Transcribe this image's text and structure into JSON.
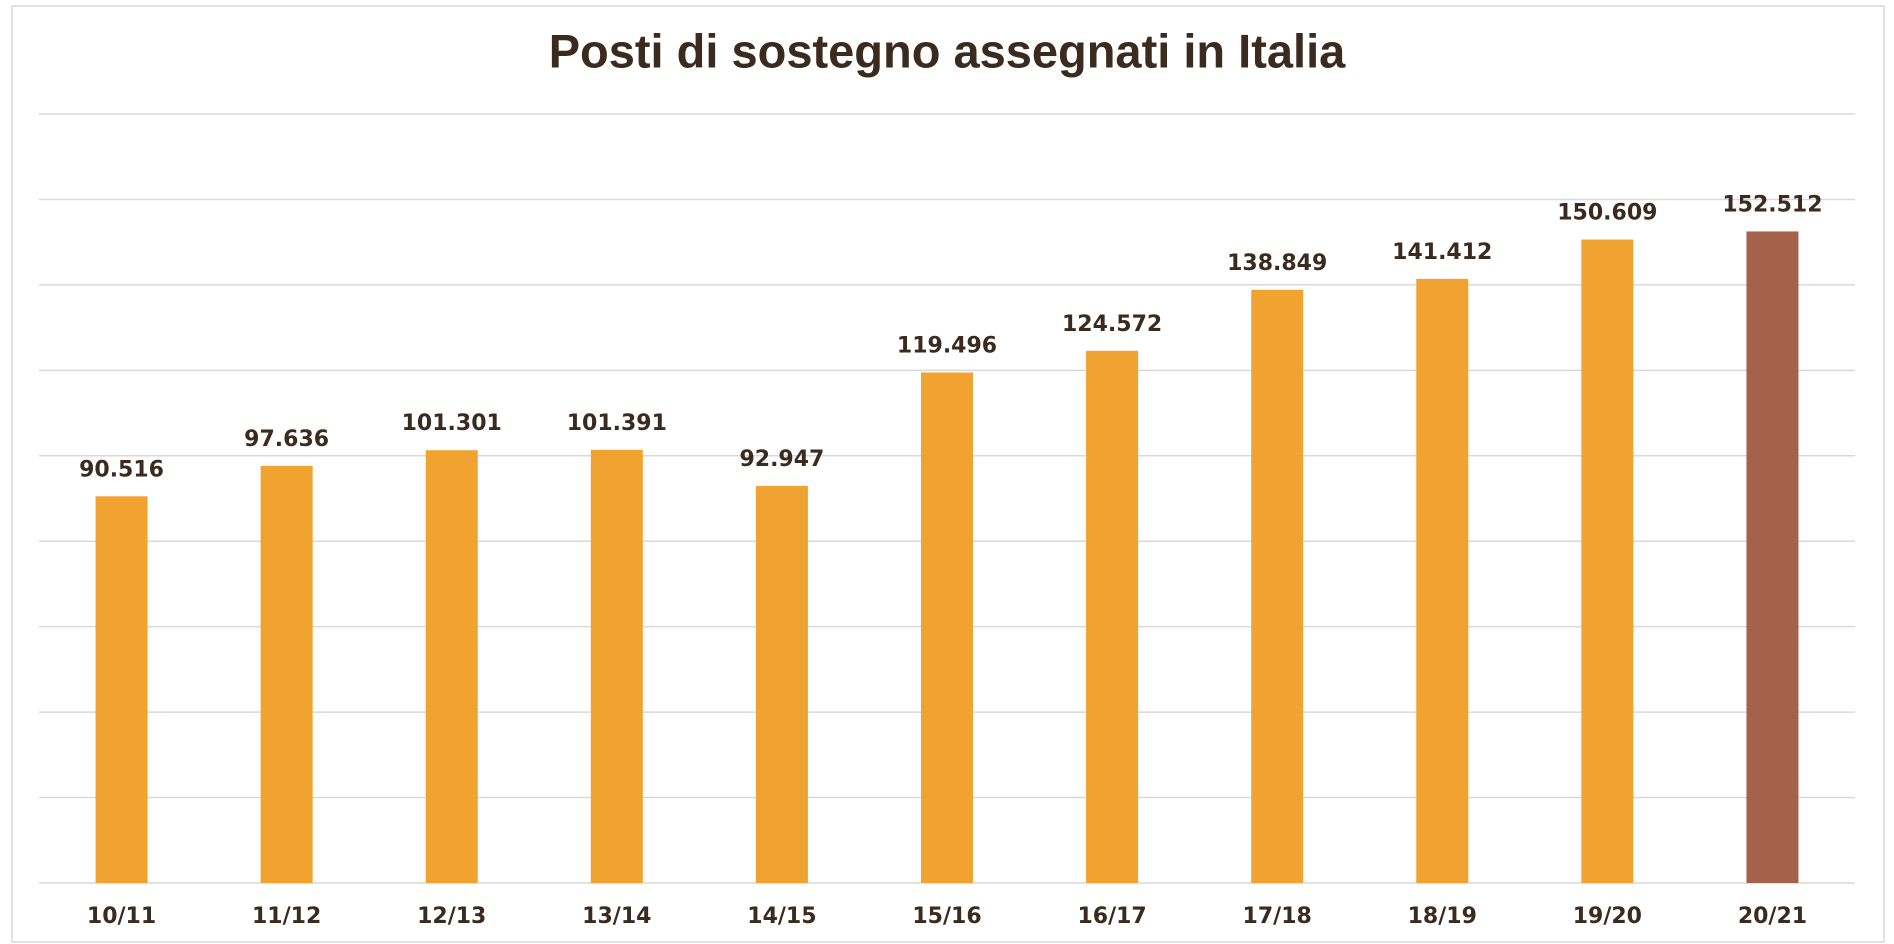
{
  "chart_data": {
    "type": "bar",
    "title": "Posti di sostegno assegnati in Italia",
    "categories": [
      "10/11",
      "11/12",
      "12/13",
      "13/14",
      "14/15",
      "15/16",
      "16/17",
      "17/18",
      "18/19",
      "19/20",
      "20/21"
    ],
    "values": [
      90516,
      97636,
      101301,
      101391,
      92947,
      119496,
      124572,
      138849,
      141412,
      150609,
      152512
    ],
    "value_labels": [
      "90.516",
      "97.636",
      "101.301",
      "101.391",
      "92.947",
      "119.496",
      "124.572",
      "138.849",
      "141.412",
      "150.609",
      "152.512"
    ],
    "colors": [
      "#f0a331",
      "#f0a331",
      "#f0a331",
      "#f0a331",
      "#f0a331",
      "#f0a331",
      "#f0a331",
      "#f0a331",
      "#f0a331",
      "#f0a331",
      "#a4614c"
    ],
    "ylim": [
      0,
      180000
    ],
    "yticks": [
      0,
      20000,
      40000,
      60000,
      80000,
      100000,
      120000,
      140000,
      160000,
      180000
    ],
    "grid": true
  }
}
